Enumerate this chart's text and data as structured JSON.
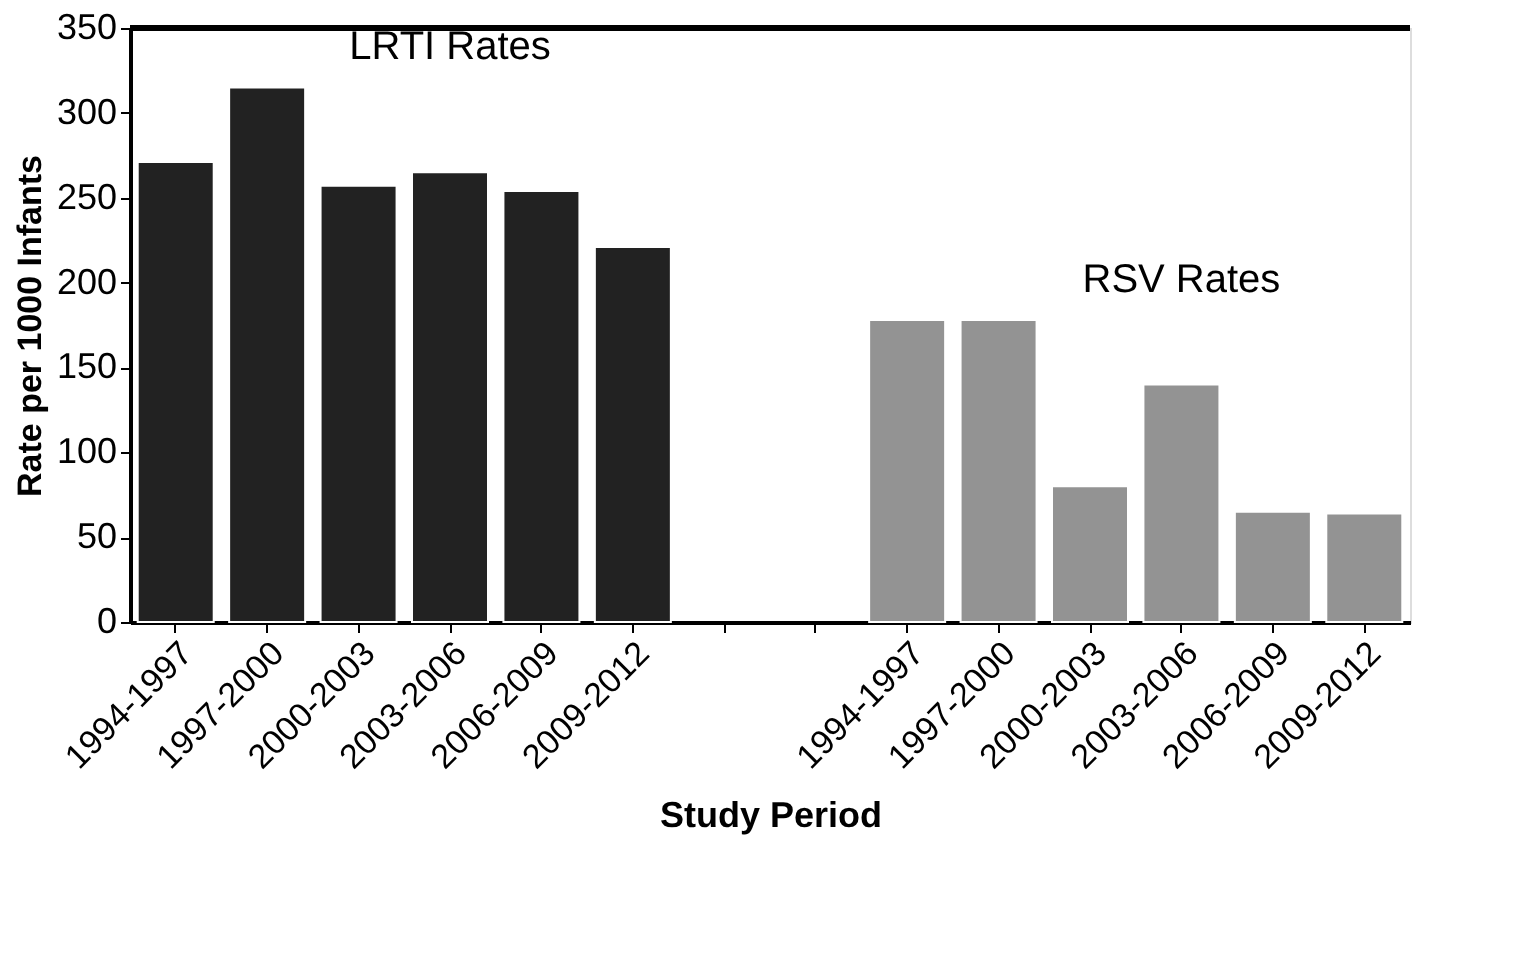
{
  "chart_data": {
    "type": "bar",
    "xlabel": "Study Period",
    "ylabel": "Rate per 1000 Infants",
    "categories": [
      "1994-1997",
      "1997-2000",
      "2000-2003",
      "2003-2006",
      "2006-2009",
      "2009-2012",
      null,
      null,
      "1994-1997",
      "1997-2000",
      "2000-2003",
      "2003-2006",
      "2006-2009",
      "2009-2012"
    ],
    "series": [
      {
        "name": "LRTI Rates",
        "color": "#222222",
        "values": [
          271,
          315,
          257,
          265,
          254,
          221,
          null,
          null,
          null,
          null,
          null,
          null,
          null,
          null
        ]
      },
      {
        "name": "RSV Rates",
        "color": "#939393",
        "values": [
          null,
          null,
          null,
          null,
          null,
          null,
          null,
          null,
          178,
          178,
          80,
          140,
          65,
          64
        ]
      }
    ],
    "ylim": [
      0,
      350
    ],
    "yticks": [
      0,
      50,
      100,
      150,
      200,
      250,
      300,
      350
    ],
    "grid": false,
    "legend": false
  }
}
